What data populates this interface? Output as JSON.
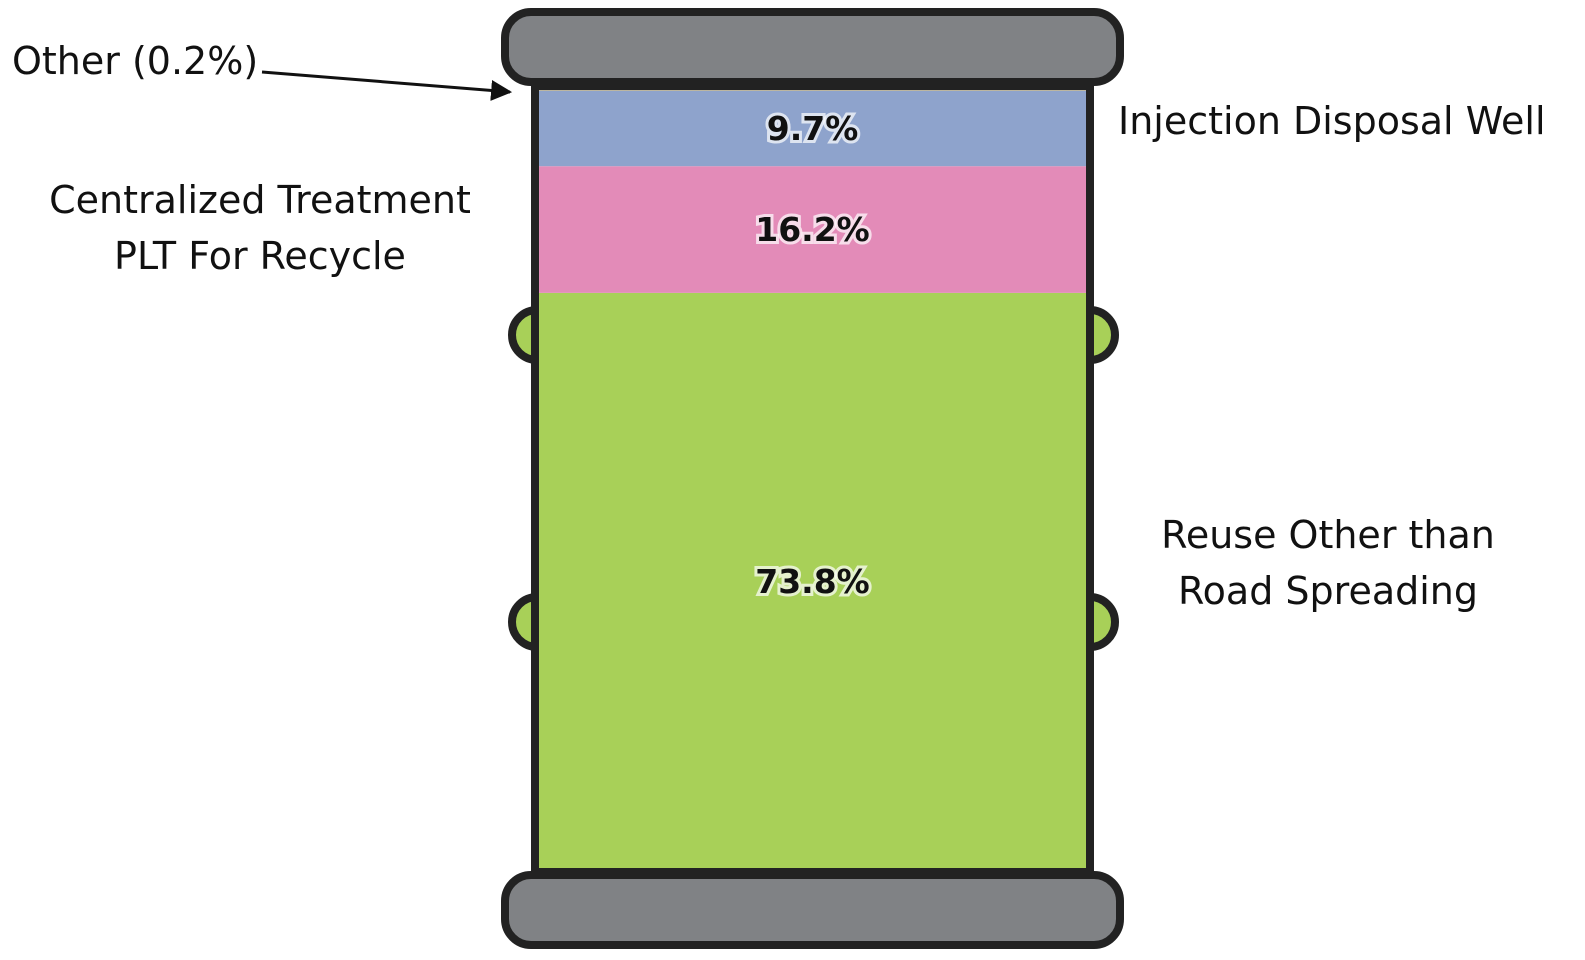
{
  "chart_data": {
    "type": "stacked_bar",
    "ylim": [
      0,
      100
    ],
    "series": [
      {
        "name": [
          "Reuse Other than",
          "Road Spreading"
        ],
        "color": "#a8d058",
        "values": [
          73.8
        ],
        "value_labels": [
          "73.8%"
        ]
      },
      {
        "name": [
          "Centralized Treatment",
          "PLT For Recycle"
        ],
        "color": "#e38bb8",
        "values": [
          16.2
        ],
        "value_labels": [
          "16.2%"
        ]
      },
      {
        "name": [
          "Injection Disposal Well"
        ],
        "color": "#8ea3cc",
        "values": [
          9.7
        ],
        "value_labels": [
          "9.7%"
        ]
      },
      {
        "name": [
          "Other (0.2%)"
        ],
        "color": "#f0c040",
        "values": [
          0.2
        ]
      }
    ]
  }
}
